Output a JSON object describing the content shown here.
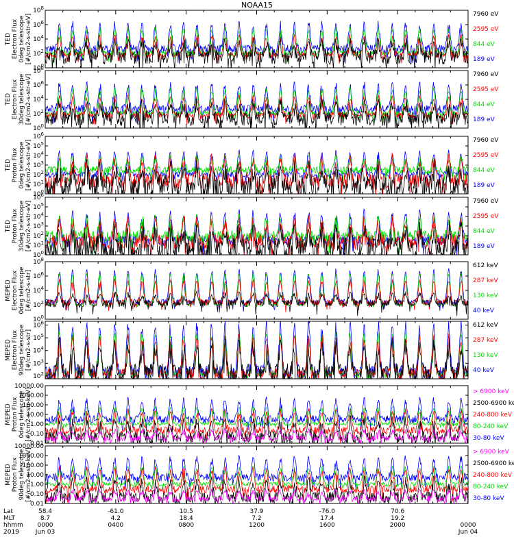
{
  "title": "NOAA15",
  "chart_data": [
    {
      "type": "line",
      "scale": "log",
      "ylabel_lines": [
        "TED",
        "Electron Flux",
        "0deg telescope",
        "[#/cm2-s-str-eV]"
      ],
      "ticks": [
        "10^0",
        "10^2",
        "10^4",
        "10^6",
        "10^8"
      ],
      "tick_values": [
        1,
        100,
        10000,
        1000000,
        100000000
      ],
      "ylim": [
        1,
        100000000
      ],
      "series": [
        {
          "name": "7960 eV",
          "color": "#000000",
          "base": 30,
          "peak": 3000,
          "noise": 1.0
        },
        {
          "name": "2595 eV",
          "color": "#ff0000",
          "base": 60,
          "peak": 20000,
          "noise": 0.4
        },
        {
          "name": "844 eV",
          "color": "#00dd00",
          "base": 100,
          "peak": 200000,
          "noise": 0.4
        },
        {
          "name": "189 eV",
          "color": "#0000ff",
          "base": 400,
          "peak": 1000000,
          "noise": 0.6
        }
      ]
    },
    {
      "type": "line",
      "scale": "log",
      "ylabel_lines": [
        "TED",
        "Electron Flux",
        "30deg telescope",
        "[#/cm2-s-str-eV]"
      ],
      "ticks": [
        "10^0",
        "10^2",
        "10^4",
        "10^6",
        "10^8"
      ],
      "tick_values": [
        1,
        100,
        10000,
        1000000,
        100000000
      ],
      "ylim": [
        1,
        100000000
      ],
      "series": [
        {
          "name": "7960 eV",
          "color": "#000000",
          "base": 20,
          "peak": 2000,
          "noise": 1.0
        },
        {
          "name": "2595 eV",
          "color": "#ff0000",
          "base": 60,
          "peak": 20000,
          "noise": 0.4
        },
        {
          "name": "844 eV",
          "color": "#00dd00",
          "base": 100,
          "peak": 200000,
          "noise": 0.4
        },
        {
          "name": "189 eV",
          "color": "#0000ff",
          "base": 400,
          "peak": 1000000,
          "noise": 0.6
        }
      ]
    },
    {
      "type": "line",
      "scale": "log",
      "ylabel_lines": [
        "TED",
        "Proton Flux",
        "0deg telescope",
        "[#/cm2-s-str-eV]"
      ],
      "ticks": [
        "10^0",
        "10^1",
        "10^2",
        "10^3",
        "10^4",
        "10^5",
        "10^6"
      ],
      "tick_values": [
        1,
        10,
        100,
        1000,
        10000,
        100000,
        1000000
      ],
      "ylim": [
        1,
        1000000
      ],
      "series": [
        {
          "name": "7960 eV",
          "color": "#000000",
          "base": 6,
          "peak": 300,
          "noise": 1.2
        },
        {
          "name": "2595 eV",
          "color": "#ff0000",
          "base": 20,
          "peak": 3000,
          "noise": 0.8
        },
        {
          "name": "844 eV",
          "color": "#00dd00",
          "base": 300,
          "peak": 5000,
          "noise": 0.4
        },
        {
          "name": "189 eV",
          "color": "#0000ff",
          "base": 100,
          "peak": 20000,
          "noise": 0.3
        }
      ]
    },
    {
      "type": "line",
      "scale": "log",
      "ylabel_lines": [
        "TED",
        "Proton Flux",
        "30deg telescope",
        "[#/cm2-s-str-eV]"
      ],
      "ticks": [
        "10^0",
        "10^1",
        "10^2",
        "10^3",
        "10^4",
        "10^5",
        "10^6"
      ],
      "tick_values": [
        1,
        10,
        100,
        1000,
        10000,
        100000,
        1000000
      ],
      "ylim": [
        1,
        1000000
      ],
      "series": [
        {
          "name": "7960 eV",
          "color": "#000000",
          "base": 4,
          "peak": 300,
          "noise": 1.2
        },
        {
          "name": "2595 eV",
          "color": "#ff0000",
          "base": 20,
          "peak": 3000,
          "noise": 0.8
        },
        {
          "name": "844 eV",
          "color": "#00dd00",
          "base": 80,
          "peak": 5000,
          "noise": 0.6
        },
        {
          "name": "189 eV",
          "color": "#0000ff",
          "base": 30,
          "peak": 20000,
          "noise": 0.5
        }
      ]
    },
    {
      "type": "line",
      "scale": "log",
      "ylabel_lines": [
        "MEPED",
        "Electron Flux",
        "0deg telescope",
        "[#/cm2-s-str]"
      ],
      "ticks": [
        "10^0",
        "10^2",
        "10^4",
        "10^6",
        "10^8"
      ],
      "tick_values": [
        1,
        100,
        10000,
        1000000,
        100000000
      ],
      "ylim": [
        1,
        100000000
      ],
      "series": [
        {
          "name": "612 keV",
          "color": "#000000",
          "base": 150,
          "peak": 3000,
          "noise": 0.5
        },
        {
          "name": "287 keV",
          "color": "#ff0000",
          "base": 200,
          "peak": 200000,
          "noise": 0.4
        },
        {
          "name": "130 keV",
          "color": "#00dd00",
          "base": 100,
          "peak": 2000000,
          "noise": 0.1
        },
        {
          "name": "40 keV",
          "color": "#0000ff",
          "base": 250,
          "peak": 5000000,
          "noise": 0.4
        }
      ]
    },
    {
      "type": "line",
      "scale": "log",
      "ylabel_lines": [
        "MEPED",
        "Electron Flux",
        "90deg telescope",
        "[#/cm2-s-str]"
      ],
      "ticks": [
        "10^2",
        "10^3",
        "10^4",
        "10^5",
        "10^6"
      ],
      "tick_values": [
        100,
        1000,
        10000,
        100000,
        1000000
      ],
      "ylim": [
        60,
        2000000
      ],
      "series": [
        {
          "name": "612 keV",
          "color": "#000000",
          "base": 150,
          "peak": 20000,
          "noise": 0.8
        },
        {
          "name": "287 keV",
          "color": "#ff0000",
          "base": 150,
          "peak": 100000,
          "noise": 0.4
        },
        {
          "name": "130 keV",
          "color": "#00dd00",
          "base": 140,
          "peak": 200000,
          "noise": 0.2
        },
        {
          "name": "40 keV",
          "color": "#0000ff",
          "base": 200,
          "peak": 1000000,
          "noise": 0.5
        }
      ]
    },
    {
      "type": "line",
      "scale": "log",
      "ylabel_lines": [
        "MEPED",
        "Proton Flux",
        "0deg telescope",
        "[#/cm2-s-str-keV]"
      ],
      "ticks": [
        "0.01",
        "0.10",
        "1.00",
        "10.00",
        "100.00",
        "1000.00",
        "10000.00"
      ],
      "tick_values": [
        0.01,
        0.1,
        1,
        10,
        100,
        1000,
        10000
      ],
      "ylim": [
        0.01,
        10000
      ],
      "series": [
        {
          "name": "> 6900 keV",
          "color": "#ff00ff",
          "base": 0.03,
          "peak": 0.2,
          "noise": 0.3
        },
        {
          "name": "2500-6900 keV",
          "color": "#000000",
          "base": 0.04,
          "peak": 2,
          "noise": 0.6
        },
        {
          "name": "240-800 keV",
          "color": "#ff0000",
          "base": 0.2,
          "peak": 20,
          "noise": 0.4
        },
        {
          "name": "80-240 keV",
          "color": "#00dd00",
          "base": 1,
          "peak": 50,
          "noise": 0.15
        },
        {
          "name": "30-80 keV",
          "color": "#0000ff",
          "base": 3,
          "peak": 300,
          "noise": 0.4
        }
      ]
    },
    {
      "type": "line",
      "scale": "log",
      "ylabel_lines": [
        "MEPED",
        "Proton Flux",
        "90deg telescope",
        "[#/cm2-s-str-keV]"
      ],
      "ticks": [
        "0.01",
        "0.10",
        "1.00",
        "10.00",
        "100.00",
        "1000.00",
        "10000.00"
      ],
      "tick_values": [
        0.01,
        0.1,
        1,
        10,
        100,
        1000,
        10000
      ],
      "ylim": [
        0.01,
        10000
      ],
      "series": [
        {
          "name": "> 6900 keV",
          "color": "#ff00ff",
          "base": 0.03,
          "peak": 0.2,
          "noise": 0.3
        },
        {
          "name": "2500-6900 keV",
          "color": "#000000",
          "base": 0.04,
          "peak": 2,
          "noise": 0.6
        },
        {
          "name": "240-800 keV",
          "color": "#ff0000",
          "base": 0.3,
          "peak": 30,
          "noise": 0.4
        },
        {
          "name": "80-240 keV",
          "color": "#00dd00",
          "base": 1,
          "peak": 60,
          "noise": 0.2
        },
        {
          "name": "30-80 keV",
          "color": "#0000ff",
          "base": 5,
          "peak": 500,
          "noise": 0.4
        }
      ]
    }
  ],
  "x_axis": {
    "row_labels": [
      "Lat",
      "MLT",
      "hhmm",
      "2019"
    ],
    "ticks": [
      {
        "hour": 0,
        "lat": "58.4",
        "mlt": "8.7",
        "hhmm": "0000",
        "date": "Jun 03"
      },
      {
        "hour": 4,
        "lat": "-61.0",
        "mlt": "4.2",
        "hhmm": "0400",
        "date": ""
      },
      {
        "hour": 8,
        "lat": "10.5",
        "mlt": "18.4",
        "hhmm": "0800",
        "date": ""
      },
      {
        "hour": 12,
        "lat": "37.9",
        "mlt": "7.2",
        "hhmm": "1200",
        "date": ""
      },
      {
        "hour": 16,
        "lat": "-76.0",
        "mlt": "17.4",
        "hhmm": "1600",
        "date": ""
      },
      {
        "hour": 20,
        "lat": "70.6",
        "mlt": "19.2",
        "hhmm": "2000",
        "date": ""
      },
      {
        "hour": 24,
        "lat": "",
        "mlt": "",
        "hhmm": "0000",
        "date": "Jun 04"
      }
    ],
    "xlim_hours": [
      0,
      24
    ]
  }
}
